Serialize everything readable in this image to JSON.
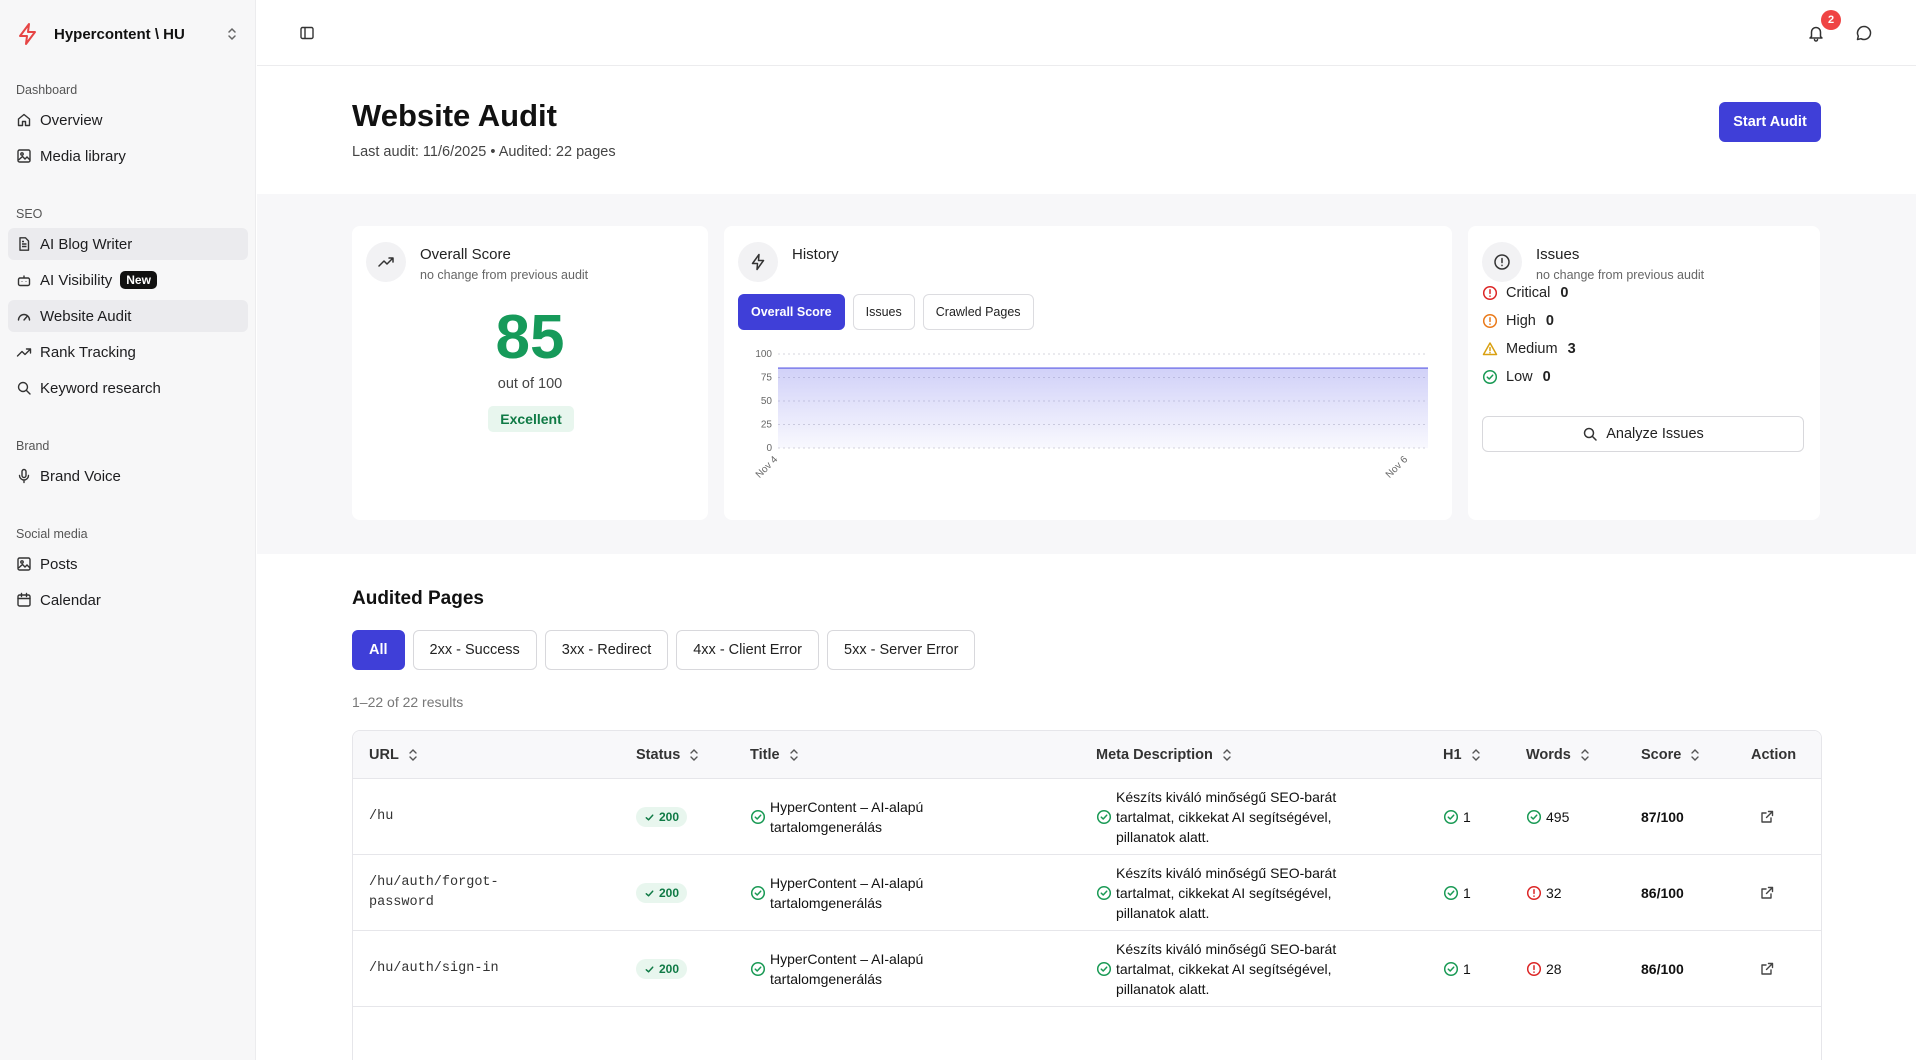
{
  "org": {
    "name": "Hypercontent \\ HU"
  },
  "sidebar": {
    "groups": [
      {
        "label": "Dashboard",
        "items": [
          {
            "label": "Overview",
            "icon": "home-icon"
          },
          {
            "label": "Media library",
            "icon": "image-icon"
          }
        ]
      },
      {
        "label": "SEO",
        "items": [
          {
            "label": "AI Blog Writer",
            "icon": "document-icon"
          },
          {
            "label": "AI Visibility",
            "icon": "bot-icon",
            "badge": "New"
          },
          {
            "label": "Website Audit",
            "icon": "gauge-icon"
          },
          {
            "label": "Rank Tracking",
            "icon": "trend-icon"
          },
          {
            "label": "Keyword research",
            "icon": "search-icon"
          }
        ]
      },
      {
        "label": "Brand",
        "items": [
          {
            "label": "Brand Voice",
            "icon": "mic-icon"
          }
        ]
      },
      {
        "label": "Social media",
        "items": [
          {
            "label": "Posts",
            "icon": "image-icon"
          },
          {
            "label": "Calendar",
            "icon": "calendar-icon"
          }
        ]
      }
    ]
  },
  "topbar": {
    "notification_count": "2"
  },
  "header": {
    "title": "Website Audit",
    "subtitle": "Last audit: 11/6/2025 • Audited: 22 pages",
    "start_button": "Start Audit"
  },
  "score_card": {
    "title": "Overall Score",
    "subtitle": "no change from previous audit",
    "value": "85",
    "out_of": "out of 100",
    "label": "Excellent"
  },
  "history_card": {
    "title": "History",
    "tabs": [
      "Overall Score",
      "Issues",
      "Crawled Pages"
    ],
    "active_tab": 0
  },
  "chart_data": {
    "type": "area",
    "x": [
      "Nov 4",
      "Nov 6"
    ],
    "y": [
      85,
      85
    ],
    "ylim": [
      0,
      100
    ],
    "yticks": [
      100,
      75,
      50,
      25,
      0
    ],
    "grid": true,
    "color": "#7b7bea"
  },
  "issues_card": {
    "title": "Issues",
    "subtitle": "no change from previous audit",
    "items": [
      {
        "label": "Critical",
        "count": "0",
        "color": "#dc2626"
      },
      {
        "label": "High",
        "count": "0",
        "color": "#ea7a1a"
      },
      {
        "label": "Medium",
        "count": "3",
        "color": "#d9a011"
      },
      {
        "label": "Low",
        "count": "0",
        "color": "#1a9a55"
      }
    ],
    "analyze_button": "Analyze Issues"
  },
  "audited": {
    "title": "Audited Pages",
    "filters": [
      "All",
      "2xx - Success",
      "3xx - Redirect",
      "4xx - Client Error",
      "5xx - Server Error"
    ],
    "results": "1–22 of 22 results",
    "columns": [
      "URL",
      "Status",
      "Title",
      "Meta Description",
      "H1",
      "Words",
      "Score",
      "Action"
    ],
    "rows": [
      {
        "url": "/hu",
        "status": "200",
        "title": "HyperContent – AI-alapú tartalomgenerálás",
        "meta": "Készíts kiváló minőségű SEO-barát tartalmat, cikkekat AI segítségével, pillanatok alatt.",
        "h1": "1",
        "words": "495",
        "words_ok": true,
        "score": "87/100"
      },
      {
        "url": "/hu/auth/forgot-password",
        "status": "200",
        "title": "HyperContent – AI-alapú tartalomgenerálás",
        "meta": "Készíts kiváló minőségű SEO-barát tartalmat, cikkekat AI segítségével, pillanatok alatt.",
        "h1": "1",
        "words": "32",
        "words_ok": false,
        "score": "86/100"
      },
      {
        "url": "/hu/auth/sign-in",
        "status": "200",
        "title": "HyperContent – AI-alapú tartalomgenerálás",
        "meta": "Készíts kiváló minőségű SEO-barát tartalmat, cikkekat AI segítségével, pillanatok alatt.",
        "h1": "1",
        "words": "28",
        "words_ok": false,
        "score": "86/100"
      }
    ]
  }
}
